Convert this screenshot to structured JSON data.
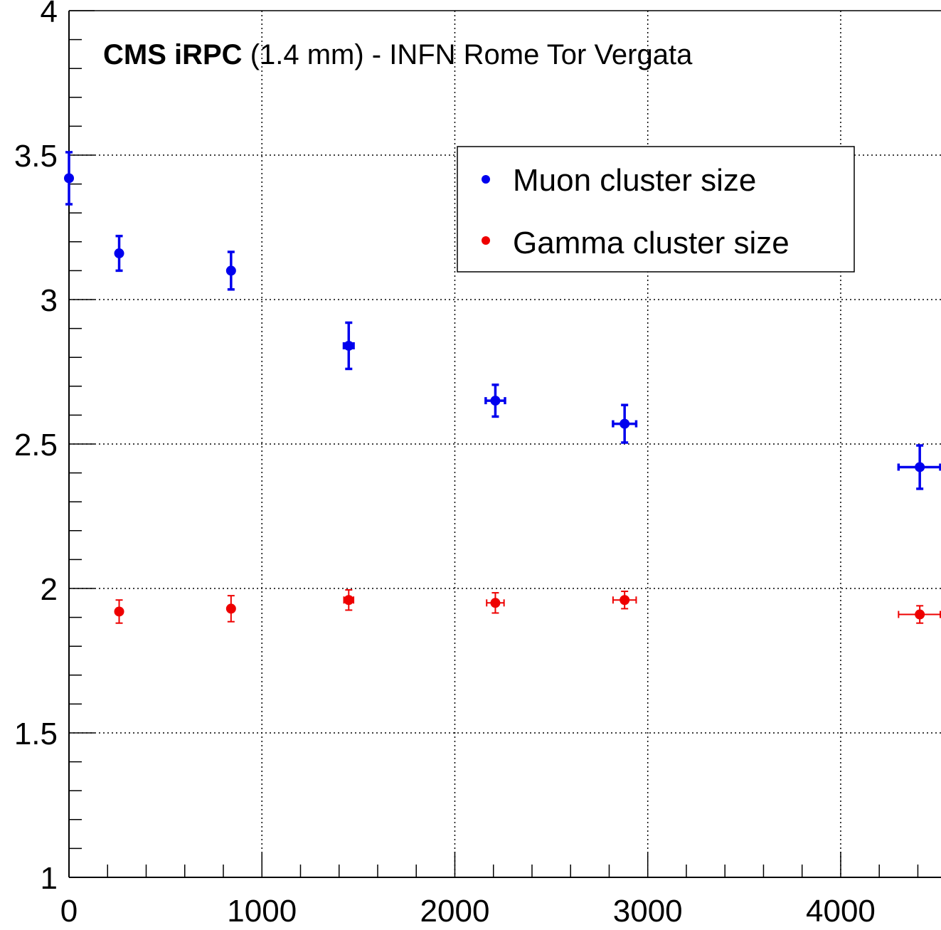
{
  "chart_data": {
    "type": "scatter",
    "title_bold": "CMS iRPC",
    "title_rest": " (1.4 mm) - INFN Rome Tor Vergata",
    "xlabel": "",
    "ylabel": "",
    "xlim": [
      0,
      4520
    ],
    "ylim": [
      1,
      4
    ],
    "grid": true,
    "legend_position": "top-right",
    "x_ticks": [
      0,
      1000,
      2000,
      3000,
      4000
    ],
    "y_ticks": [
      1,
      1.5,
      2,
      2.5,
      3,
      3.5,
      4
    ],
    "x_tick_labels": [
      "0",
      "1000",
      "2000",
      "3000",
      "4000"
    ],
    "y_tick_labels": [
      "1",
      "1.5",
      "2",
      "2.5",
      "3",
      "3.5",
      "4"
    ],
    "series": [
      {
        "name": "Muon cluster size",
        "color": "#0000ee",
        "points": [
          {
            "x": 0,
            "y": 3.42,
            "xerr": 0,
            "yerr": 0.09
          },
          {
            "x": 260,
            "y": 3.16,
            "xerr": 0,
            "yerr": 0.06
          },
          {
            "x": 840,
            "y": 3.1,
            "xerr": 0,
            "yerr": 0.065
          },
          {
            "x": 1450,
            "y": 2.84,
            "xerr": 25,
            "yerr": 0.08
          },
          {
            "x": 2210,
            "y": 2.65,
            "xerr": 50,
            "yerr": 0.055
          },
          {
            "x": 2880,
            "y": 2.57,
            "xerr": 60,
            "yerr": 0.065
          },
          {
            "x": 4410,
            "y": 2.42,
            "xerr": 110,
            "yerr": 0.075
          }
        ]
      },
      {
        "name": "Gamma cluster size",
        "color": "#ee0000",
        "points": [
          {
            "x": 260,
            "y": 1.92,
            "xerr": 0,
            "yerr": 0.04
          },
          {
            "x": 840,
            "y": 1.93,
            "xerr": 0,
            "yerr": 0.045
          },
          {
            "x": 1450,
            "y": 1.96,
            "xerr": 25,
            "yerr": 0.035
          },
          {
            "x": 2210,
            "y": 1.95,
            "xerr": 45,
            "yerr": 0.035
          },
          {
            "x": 2880,
            "y": 1.96,
            "xerr": 60,
            "yerr": 0.03
          },
          {
            "x": 4410,
            "y": 1.91,
            "xerr": 110,
            "yerr": 0.03
          }
        ]
      }
    ]
  }
}
